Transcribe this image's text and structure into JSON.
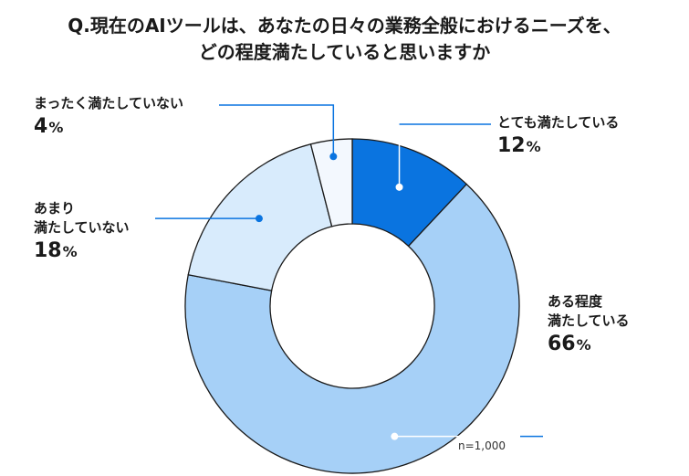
{
  "title_line1": "Q.現在のAIツールは、あなたの日々の業務全般におけるニーズを、",
  "title_line2": "どの程度満たしていると思いますか",
  "note": "n=1,000",
  "chart_data": {
    "type": "pie",
    "donut": true,
    "unit": "%",
    "slices": [
      {
        "label": "とても満たしている",
        "value": 12,
        "color": "#0a74e0"
      },
      {
        "label": "ある程度満たしている",
        "value": 66,
        "color": "#a6d0f7"
      },
      {
        "label": "あまり満たしていない",
        "value": 18,
        "color": "#d8ebfc"
      },
      {
        "label": "まったく満たしていない",
        "value": 4,
        "color": "#f3f8fe"
      }
    ]
  },
  "labels": [
    {
      "lines": [
        "とても満たしている"
      ],
      "value": "12",
      "pct": "%"
    },
    {
      "lines": [
        "ある程度",
        "満たしている"
      ],
      "value": "66",
      "pct": "%"
    },
    {
      "lines": [
        "あまり",
        "満たしていない"
      ],
      "value": "18",
      "pct": "%"
    },
    {
      "lines": [
        "まったく満たしていない"
      ],
      "value": "4",
      "pct": "%"
    }
  ]
}
